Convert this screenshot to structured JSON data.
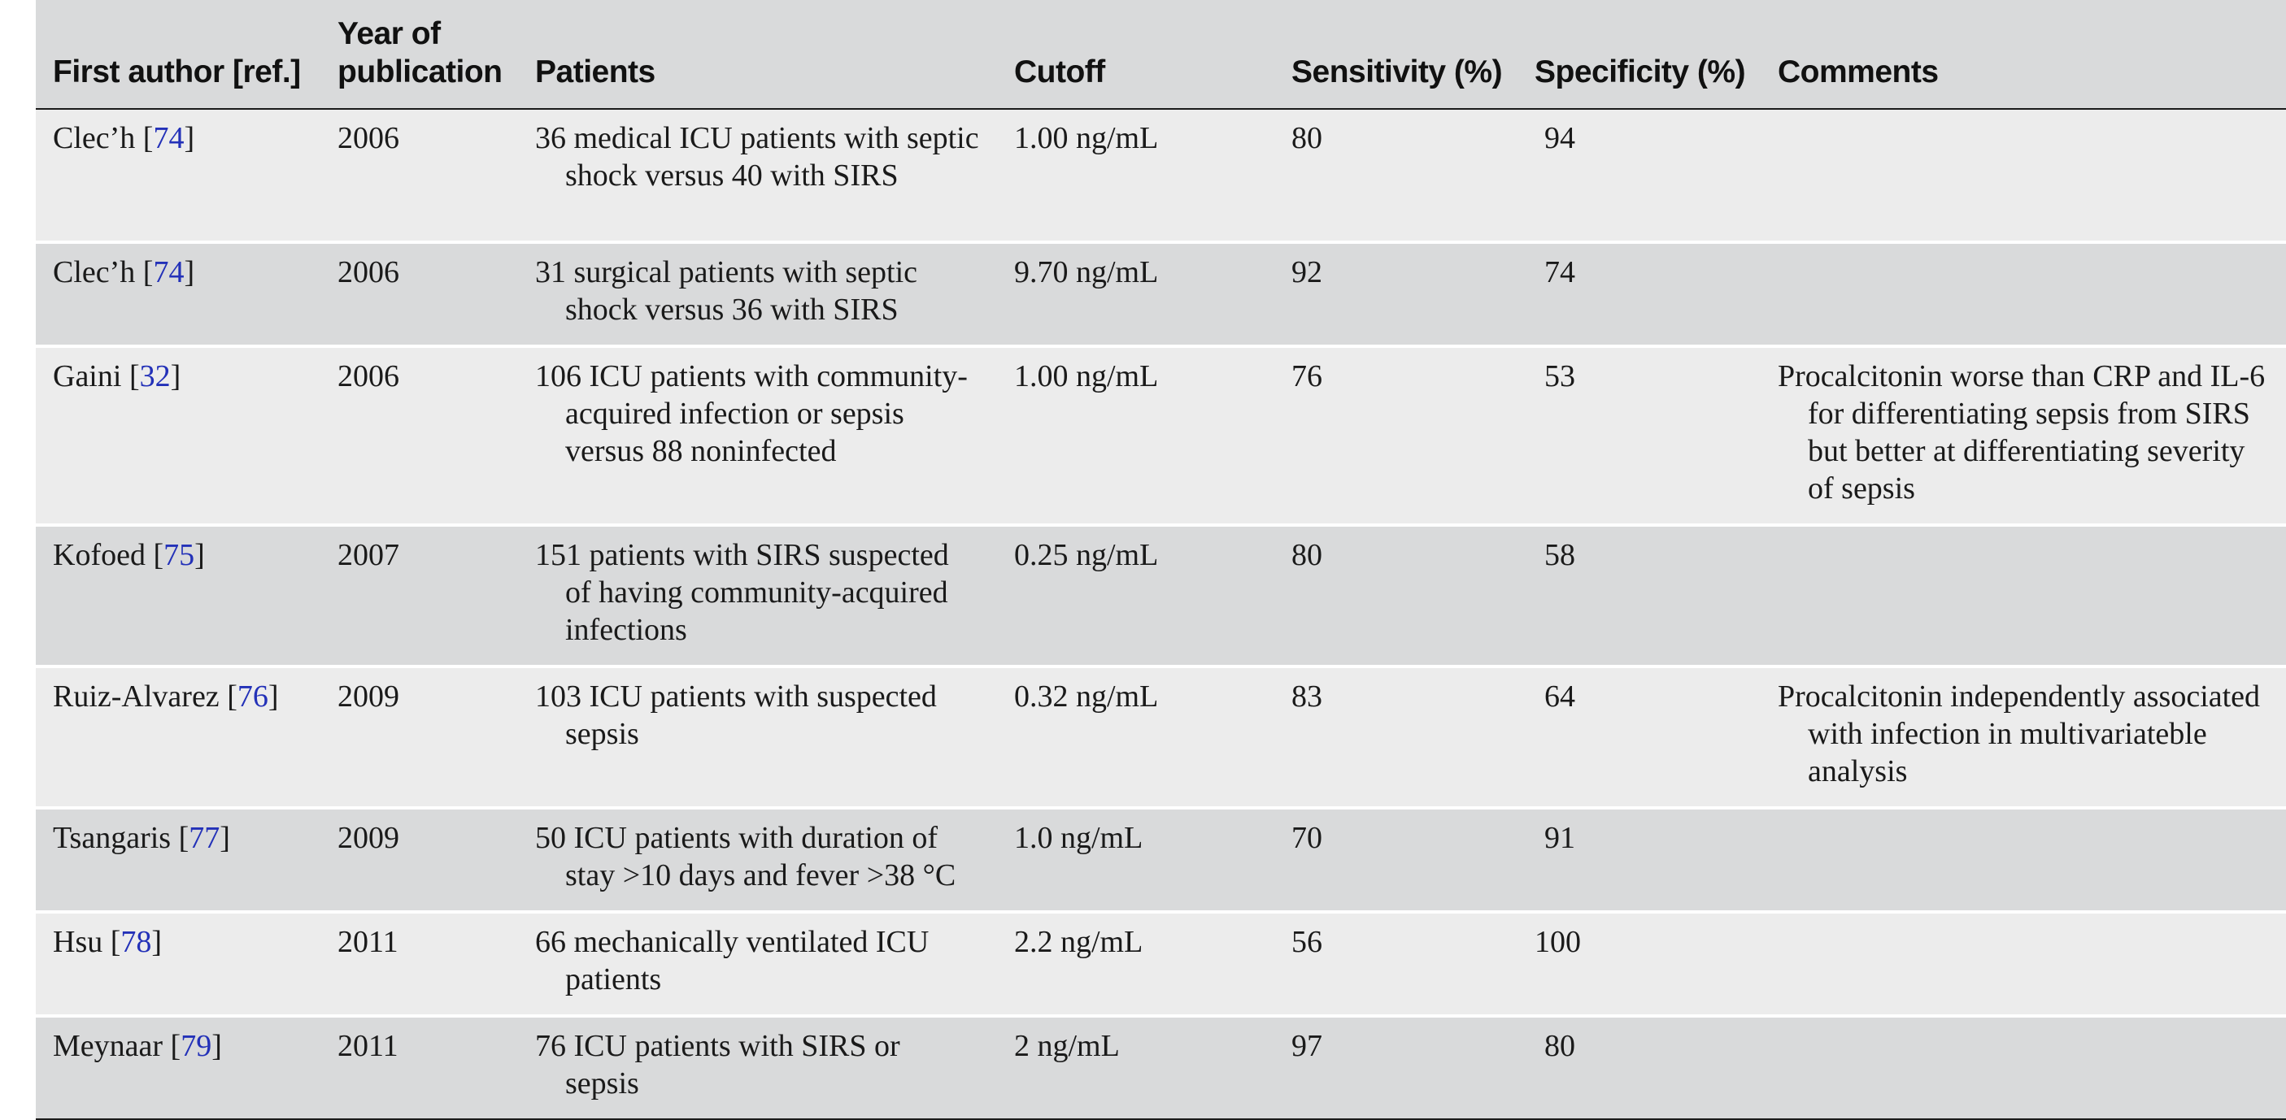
{
  "headers": {
    "author": "First author [ref.]",
    "year_line1": "Year of",
    "year_line2": "publication",
    "patients": "Patients",
    "cutoff": "Cutoff",
    "sensitivity": "Sensitivity (%)",
    "specificity": "Specificity (%)",
    "comments": "Comments"
  },
  "rows": [
    {
      "author": "Clec’h",
      "ref": "74",
      "year": "2006",
      "patients": "36 medical ICU patients with septic shock versus 40 with SIRS",
      "cutoff": "1.00 ng/mL",
      "sensitivity": "80",
      "specificity": "94",
      "comments": ""
    },
    {
      "author": "Clec’h",
      "ref": "74",
      "year": "2006",
      "patients": "31 surgical patients with septic shock versus 36 with SIRS",
      "cutoff": "9.70 ng/mL",
      "sensitivity": "92",
      "specificity": "74",
      "comments": ""
    },
    {
      "author": "Gaini",
      "ref": "32",
      "year": "2006",
      "patients": "106 ICU patients with community-acquired infection or sepsis versus 88 noninfected",
      "cutoff": "1.00 ng/mL",
      "sensitivity": "76",
      "specificity": "53",
      "comments": "Procalcitonin worse than CRP and IL-6 for differentiating sepsis from SIRS but better at differentiating severity of sepsis"
    },
    {
      "author": "Kofoed",
      "ref": "75",
      "year": "2007",
      "patients": "151 patients with SIRS suspected of having community-acquired infections",
      "cutoff": "0.25 ng/mL",
      "sensitivity": "80",
      "specificity": "58",
      "comments": ""
    },
    {
      "author": "Ruiz-Alvarez",
      "ref": "76",
      "year": "2009",
      "patients": "103 ICU patients with suspected sepsis",
      "cutoff": "0.32 ng/mL",
      "sensitivity": "83",
      "specificity": "64",
      "comments": "Procalcitonin independently associated with infection in multivariateble analysis"
    },
    {
      "author": "Tsangaris",
      "ref": "77",
      "year": "2009",
      "patients": "50 ICU patients with duration of stay >10 days and fever >38 °C",
      "cutoff": "1.0 ng/mL",
      "sensitivity": "70",
      "specificity": "91",
      "comments": ""
    },
    {
      "author": "Hsu",
      "ref": "78",
      "year": "2011",
      "patients": "66 mechanically ventilated ICU patients",
      "cutoff": "2.2 ng/mL",
      "sensitivity": "56",
      "specificity": "100",
      "comments": ""
    },
    {
      "author": "Meynaar",
      "ref": "79",
      "year": "2011",
      "patients": "76 ICU patients with SIRS or sepsis",
      "cutoff": "2 ng/mL",
      "sensitivity": "97",
      "specificity": "80",
      "comments": ""
    }
  ],
  "colors": {
    "header_bg": "#d9dadb",
    "row_light": "#ececec",
    "row_dark": "#d9dadb",
    "ref_link": "#2331b8"
  }
}
